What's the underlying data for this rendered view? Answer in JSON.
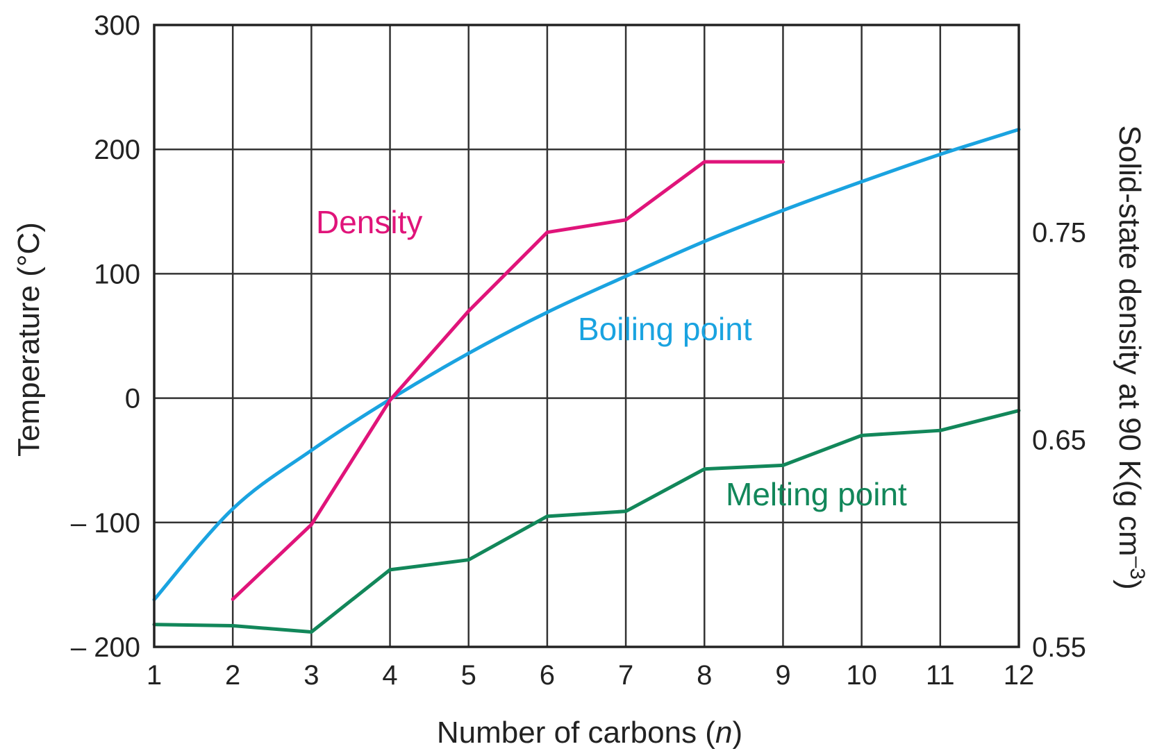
{
  "chart_data": {
    "type": "line",
    "x": [
      1,
      2,
      3,
      4,
      5,
      6,
      7,
      8,
      9,
      10,
      11,
      12
    ],
    "xlabel_main": "Number of carbons (",
    "xlabel_italic": "n",
    "xlabel_end": ")",
    "ylabel": "Temperature (°C)",
    "y2label_main": "Solid-state density at 90 K(g cm",
    "y2label_sup": "–3",
    "y2label_end": ")",
    "xlim": [
      1,
      12
    ],
    "ylim": [
      -200,
      300
    ],
    "y2lim": [
      0.55,
      0.85
    ],
    "x_ticks": [
      "1",
      "2",
      "3",
      "4",
      "5",
      "6",
      "7",
      "8",
      "9",
      "10",
      "11",
      "12"
    ],
    "y_ticks": [
      {
        "value": -200,
        "label": "– 200"
      },
      {
        "value": -100,
        "label": "– 100"
      },
      {
        "value": 0,
        "label": "0"
      },
      {
        "value": 100,
        "label": "100"
      },
      {
        "value": 200,
        "label": "200"
      },
      {
        "value": 300,
        "label": "300"
      }
    ],
    "y2_ticks": [
      {
        "value": 0.55,
        "label": "0.55"
      },
      {
        "value": 0.65,
        "label": "0.65"
      },
      {
        "value": 0.75,
        "label": "0.75"
      }
    ],
    "grid": true,
    "series": [
      {
        "name": "Boiling point",
        "axis": "left",
        "color": "#1aa3e0",
        "x": [
          1,
          2,
          3,
          4,
          5,
          6,
          7,
          8,
          9,
          10,
          11,
          12
        ],
        "values": [
          -162,
          -89,
          -42,
          -1,
          36,
          69,
          98,
          126,
          151,
          174,
          196,
          216
        ]
      },
      {
        "name": "Melting point",
        "axis": "left",
        "color": "#12875a",
        "x": [
          1,
          2,
          3,
          4,
          5,
          6,
          7,
          8,
          9,
          10,
          11,
          12
        ],
        "values": [
          -182,
          -183,
          -188,
          -138,
          -130,
          -95,
          -91,
          -57,
          -54,
          -30,
          -26,
          -10
        ]
      },
      {
        "name": "Density",
        "axis": "right",
        "color": "#e0147a",
        "x": [
          2,
          3,
          4,
          5,
          6,
          7,
          8,
          9
        ],
        "values": [
          0.573,
          0.609,
          0.669,
          0.712,
          0.75,
          0.756,
          0.784,
          0.784
        ]
      }
    ]
  }
}
